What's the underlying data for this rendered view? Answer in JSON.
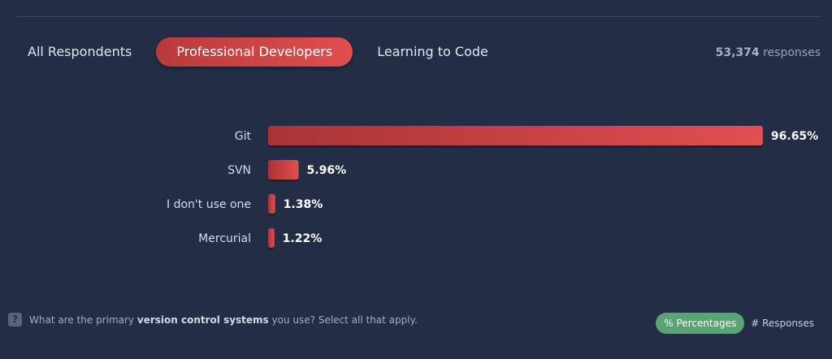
{
  "tabs": [
    {
      "label": "All Respondents",
      "active": false
    },
    {
      "label": "Professional Developers",
      "active": true
    },
    {
      "label": "Learning to Code",
      "active": false
    }
  ],
  "responses": {
    "count": "53,374",
    "label": "responses"
  },
  "chart_data": {
    "type": "bar",
    "orientation": "horizontal",
    "categories": [
      "Git",
      "SVN",
      "I don't use one",
      "Mercurial"
    ],
    "values": [
      96.65,
      5.96,
      1.38,
      1.22
    ],
    "value_labels": [
      "96.65%",
      "5.96%",
      "1.38%",
      "1.22%"
    ],
    "unit": "%",
    "xlim": [
      0,
      100
    ],
    "bar_color": "#d9484a",
    "grid": false
  },
  "question": {
    "icon": "question-icon",
    "prefix": "What are the primary",
    "keyword": "version control systems",
    "suffix": "you use? Select all that apply."
  },
  "toggles": [
    {
      "label": "% Percentages",
      "active": true,
      "color": "#5aa374"
    },
    {
      "label": "# Responses",
      "active": false
    }
  ],
  "colors": {
    "background": "#232d45",
    "accent": "#d9484a",
    "active_tab": "#d94848"
  }
}
